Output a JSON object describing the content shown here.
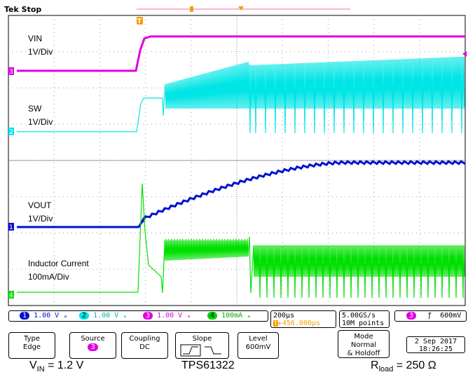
{
  "header": {
    "brand": "Tek",
    "state": "Stop"
  },
  "traces": {
    "vin": {
      "name": "VIN",
      "scale": "1V/Div",
      "color": "#e000e0"
    },
    "sw": {
      "name": "SW",
      "scale": "1V/Div",
      "color": "#00e5e5"
    },
    "vout": {
      "name": "VOUT",
      "scale": "1V/Div",
      "color": "#0010d0"
    },
    "il": {
      "name": "Inductor Current",
      "scale": "100mA/Div",
      "color": "#00e000"
    }
  },
  "channel_markers": {
    "ch1": "1",
    "ch2": "2",
    "ch3": "3",
    "ch4": "4",
    "trigger": "T"
  },
  "status": {
    "ch1": "1.00 V",
    "ch2": "1.00 V",
    "ch3": "1.00 V",
    "ch4": "100mA",
    "timebase": "200µs",
    "trigger_pos": "▸456.000µs",
    "sample_rate": "5.00GS/s",
    "record_length": "10M points",
    "trig_level": "600mV"
  },
  "menu": {
    "type_title": "Type",
    "type_value": "Edge",
    "source_title": "Source",
    "source_value": "3",
    "coupling_title": "Coupling",
    "coupling_value": "DC",
    "slope_title": "Slope",
    "level_title": "Level",
    "level_value": "600mV",
    "mode_title": "Mode",
    "mode_value1": "Normal",
    "mode_value2": "& Holdoff"
  },
  "datetime": {
    "date": "2 Sep 2017",
    "time": "18:26:25"
  },
  "captions": {
    "vin_prefix": "V",
    "vin_sub": "IN",
    "vin_value": " = 1.2 V",
    "device": "TPS61322",
    "rload_prefix": "R",
    "rload_sub": "load",
    "rload_value": " = 250 Ω"
  }
}
